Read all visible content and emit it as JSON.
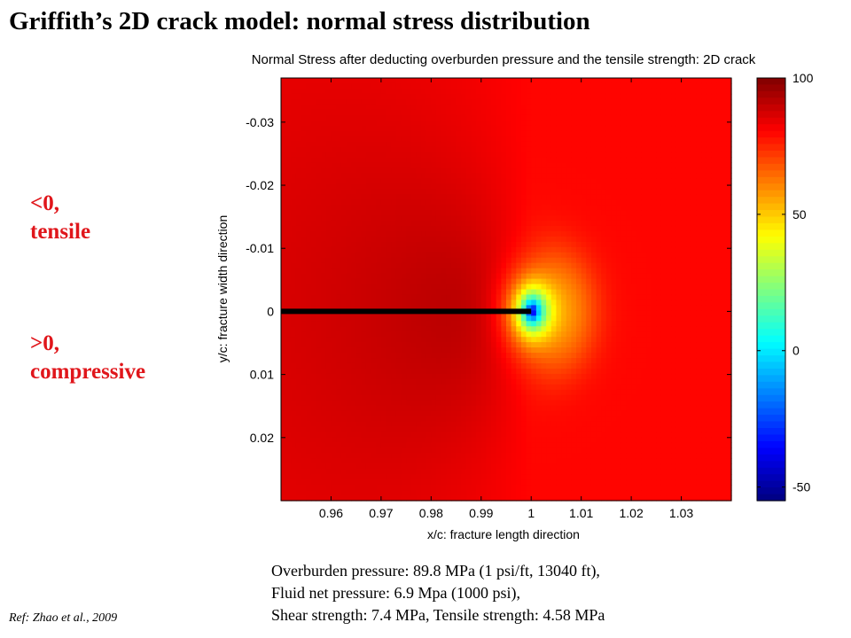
{
  "slide": {
    "title": "Griffith’s 2D crack model: normal stress distribution",
    "tensile_sign": "<0,",
    "tensile_word": "tensile",
    "compressive_sign": ">0,",
    "compressive_word": "compressive",
    "params": [
      "Overburden pressure: 89.8 MPa (1 psi/ft, 13040 ft),",
      "Fluid net pressure: 6.9 Mpa (1000 psi),",
      "Shear strength: 7.4 MPa, Tensile strength: 4.58 MPa"
    ],
    "reference": "Ref: Zhao et al., 2009"
  },
  "chart_data": {
    "type": "heatmap",
    "title": "Normal Stress after deducting overburden pressure and the tensile strength: 2D crack",
    "xlabel": "x/c: fracture length direction",
    "ylabel": "y/c: fracture width direction",
    "xlim": [
      0.95,
      1.04
    ],
    "ylim": [
      -0.037,
      0.03
    ],
    "y_reversed": true,
    "xticks": [
      0.96,
      0.97,
      0.98,
      0.99,
      1,
      1.01,
      1.02,
      1.03
    ],
    "xtick_labels": [
      "0.96",
      "0.97",
      "0.98",
      "0.99",
      "1",
      "1.01",
      "1.02",
      "1.03"
    ],
    "yticks": [
      -0.03,
      -0.02,
      -0.01,
      0,
      0.01,
      0.02
    ],
    "ytick_labels": [
      "-0.03",
      "-0.02",
      "-0.01",
      "0",
      "0.01",
      "0.02"
    ],
    "colorbar": {
      "colormap": "jet",
      "clim": [
        -55,
        100
      ],
      "ticks": [
        100,
        50,
        0,
        -50
      ],
      "tick_labels": [
        "100",
        "50",
        "0",
        "-50"
      ]
    },
    "crack": {
      "y": 0,
      "x_start": 0.95,
      "x_end": 1.0,
      "color": "#000000"
    },
    "crack_tip": {
      "x": 1.0,
      "y": 0
    },
    "field_description_values": {
      "far_field_stress": 80,
      "near_crack_flank_stress": 95,
      "tip_min_stress": -55
    }
  }
}
